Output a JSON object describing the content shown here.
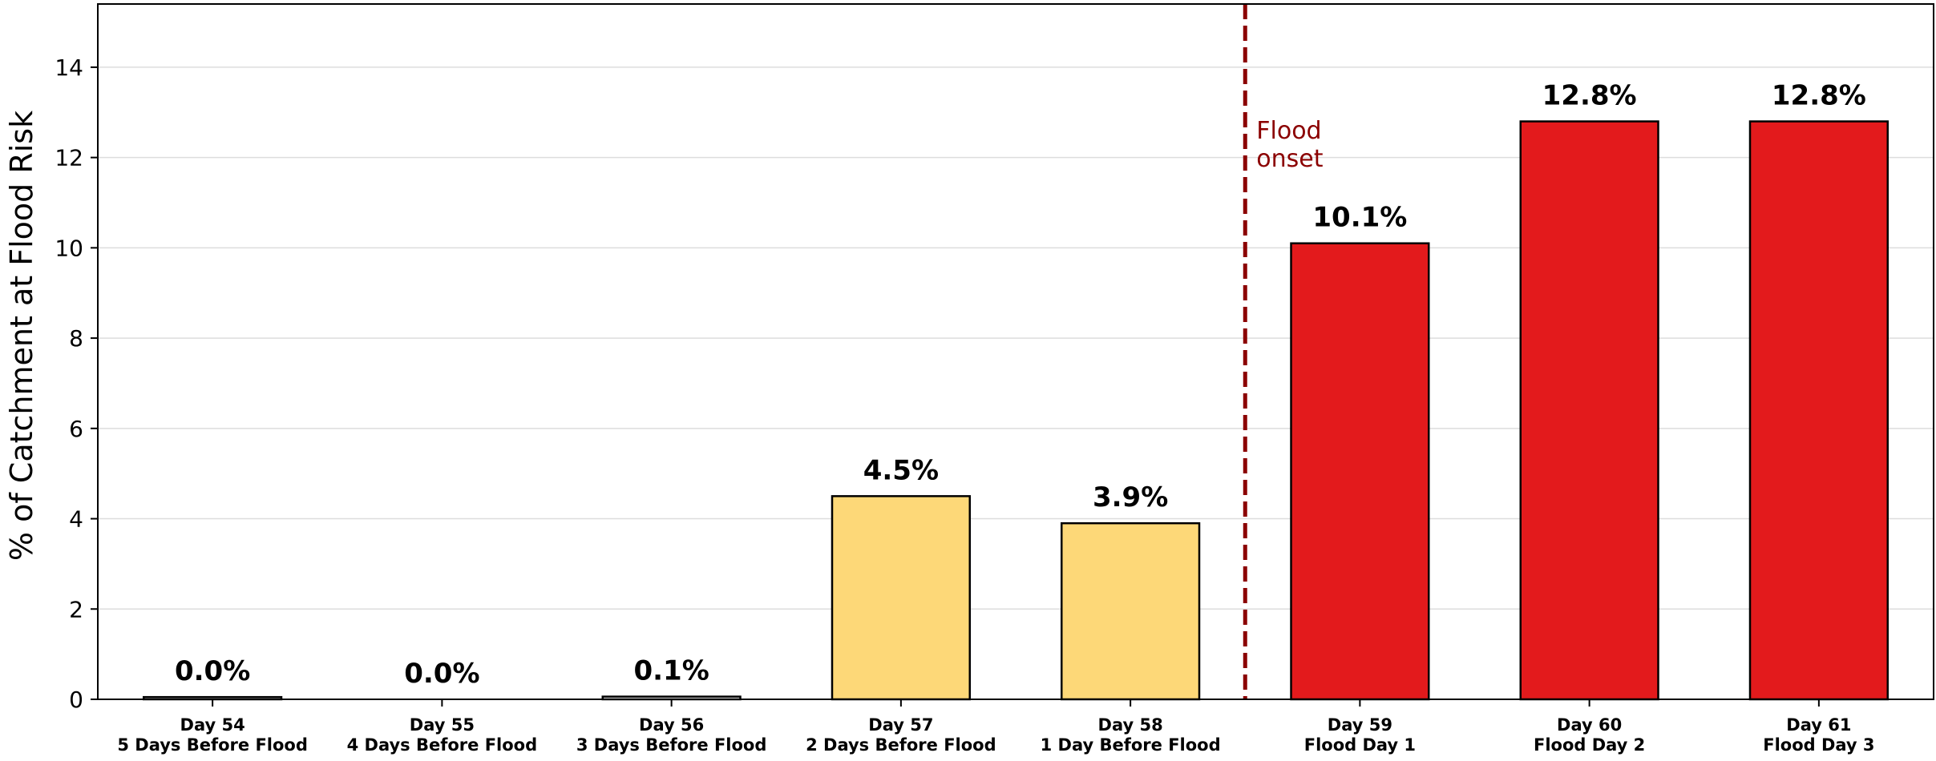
{
  "chart_data": {
    "type": "bar",
    "title": "",
    "xlabel": "",
    "ylabel": "% of Catchment at Flood Risk",
    "ylim": [
      0,
      15.4
    ],
    "yticks": [
      0,
      2,
      4,
      6,
      8,
      10,
      12,
      14
    ],
    "grid": "horizontal",
    "categories": [
      [
        "Day 54",
        "5 Days Before Flood"
      ],
      [
        "Day 55",
        "4 Days Before Flood"
      ],
      [
        "Day 56",
        "3 Days Before Flood"
      ],
      [
        "Day 57",
        "2 Days Before Flood"
      ],
      [
        "Day 58",
        "1 Day Before Flood"
      ],
      [
        "Day 59",
        "Flood Day 1"
      ],
      [
        "Day 60",
        "Flood Day 2"
      ],
      [
        "Day 61",
        "Flood Day 3"
      ]
    ],
    "values": [
      0.05,
      0.0,
      0.06,
      4.5,
      3.9,
      10.1,
      12.8,
      12.8
    ],
    "value_labels": [
      "0.0%",
      "0.0%",
      "0.1%",
      "4.5%",
      "3.9%",
      "10.1%",
      "12.8%",
      "12.8%"
    ],
    "bar_colors": [
      "#ffffff",
      "#ffffff",
      "#ffffff",
      "#fdd878",
      "#fdd878",
      "#e31a1c",
      "#e31a1c",
      "#e31a1c"
    ],
    "edge_color": "#000000",
    "vline": {
      "between_categories": [
        4,
        5
      ],
      "color": "#8b0000",
      "style": "dashed",
      "label": [
        "Flood",
        "onset"
      ]
    }
  }
}
